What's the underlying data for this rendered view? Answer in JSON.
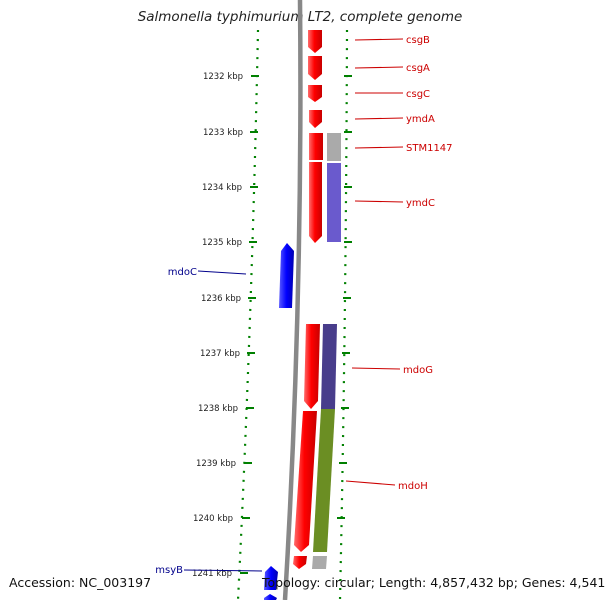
{
  "title": "Salmonella typhimurium LT2, complete genome",
  "accession": "Accession: NC_003197",
  "summary": "Topology: circular; Length: 4,857,432 bp; Genes: 4,541",
  "colors": {
    "forward_gene": "#ff0000",
    "reverse_gene": "#0000ff",
    "backbone": "#888888",
    "ticks": "#008000",
    "cog_grey": "#aaaaaa",
    "cog_purple": "#6a5acd",
    "cog_dark_purple": "#483d8b",
    "cog_olive": "#6b8e23"
  },
  "scale_labels": [
    "1232 kbp",
    "1233 kbp",
    "1234 kbp",
    "1235 kbp",
    "1236 kbp",
    "1237 kbp",
    "1238 kbp",
    "1239 kbp",
    "1240 kbp",
    "1241 kbp"
  ],
  "genes_right": [
    "csgB",
    "csgA",
    "csgC",
    "ymdA",
    "STM1147",
    "ymdC",
    "mdoG",
    "mdoH"
  ],
  "genes_left": [
    "mdoC",
    "msyB"
  ]
}
